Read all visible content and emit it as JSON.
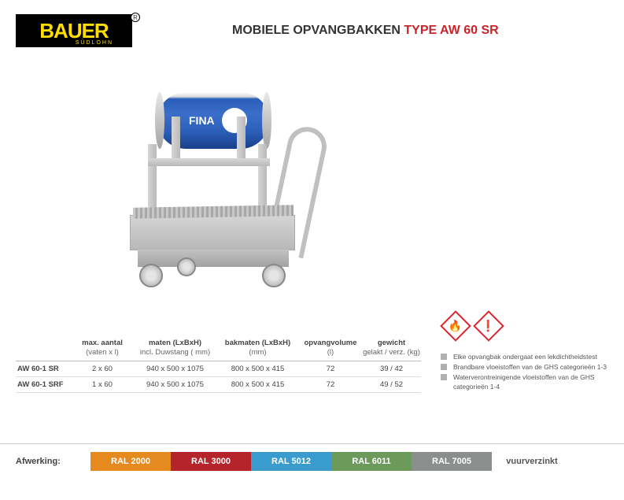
{
  "logo": {
    "name": "BAUER",
    "sub": "SÜDLOHN"
  },
  "title": {
    "text1": "MOBIELE OPVANGBAKKEN ",
    "text2": "TYPE AW 60 SR"
  },
  "barrel_label": "FINA",
  "hazard": {
    "icons": [
      {
        "border_color": "#d9242c",
        "symbol": "🔥"
      },
      {
        "border_color": "#d9242c",
        "symbol": "❗"
      }
    ],
    "bullets": [
      "Elke opvangbak ondergaat een lekdichtheidstest",
      "Brandbare vloeistoffen van de GHS categorieën 1-3",
      "Waterverontreinigende vloeistoffen van de GHS categorieën 1-4"
    ]
  },
  "table": {
    "columns": [
      {
        "main": "",
        "sub": ""
      },
      {
        "main": "max. aantal",
        "sub": "(vaten x l)"
      },
      {
        "main": "maten (LxBxH)",
        "sub": "incl. Duwstang ( mm)"
      },
      {
        "main": "bakmaten (LxBxH)",
        "sub": "(mm)"
      },
      {
        "main": "opvangvolume",
        "sub": "(l)"
      },
      {
        "main": "gewicht",
        "sub": "gelakt / verz. (kg)"
      }
    ],
    "rows": [
      {
        "name": "AW 60-1 SR",
        "vals": [
          "2 x 60",
          "940 x 500 x 1075",
          "800 x 500 x 415",
          "72",
          "39 / 42"
        ]
      },
      {
        "name": "AW 60-1 SRF",
        "vals": [
          "1 x 60",
          "940 x 500 x 1075",
          "800 x 500 x 415",
          "72",
          "49 / 52"
        ]
      }
    ]
  },
  "footer": {
    "label": "Afwerking:",
    "swatches": [
      {
        "label": "RAL 2000",
        "color": "#e58a1f"
      },
      {
        "label": "RAL 3000",
        "color": "#b5232b"
      },
      {
        "label": "RAL 5012",
        "color": "#3a9bcf"
      },
      {
        "label": "RAL 6011",
        "color": "#6b9a5a"
      },
      {
        "label": "RAL 7005",
        "color": "#8a8f8d"
      },
      {
        "label": "vuurverzinkt",
        "color": "transparent"
      }
    ]
  }
}
